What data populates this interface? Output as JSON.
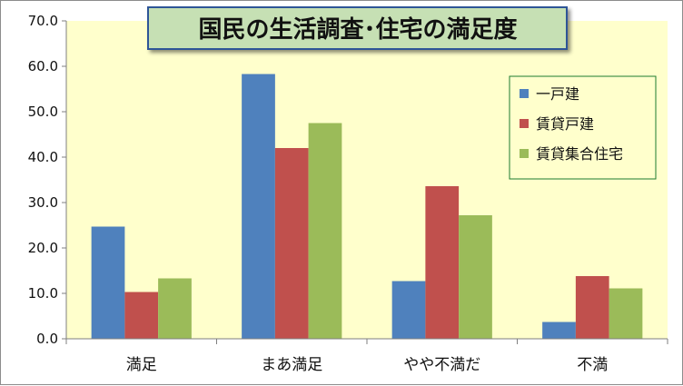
{
  "chart_data": {
    "type": "bar",
    "title": "国民の生活調査･住宅の満足度",
    "categories": [
      "満足",
      "まあ満足",
      "やや不満だ",
      "不満"
    ],
    "series": [
      {
        "name": "一戸建",
        "color": "#4f81bd",
        "values": [
          24.7,
          58.3,
          12.7,
          3.7
        ]
      },
      {
        "name": "賃貸戸建",
        "color": "#c0504d",
        "values": [
          10.3,
          42.0,
          33.6,
          13.8
        ]
      },
      {
        "name": "賃貸集合住宅",
        "color": "#9bbb59",
        "values": [
          13.3,
          47.5,
          27.2,
          11.1
        ]
      }
    ],
    "ylim": [
      0,
      70
    ],
    "ytick_labels": [
      "0.0",
      "10.0",
      "20.0",
      "30.0",
      "40.0",
      "50.0",
      "60.0",
      "70.0"
    ],
    "xlabel": "",
    "ylabel": "",
    "grid": false,
    "legend_position": "top-right",
    "plot_background": "#ffffcc"
  }
}
